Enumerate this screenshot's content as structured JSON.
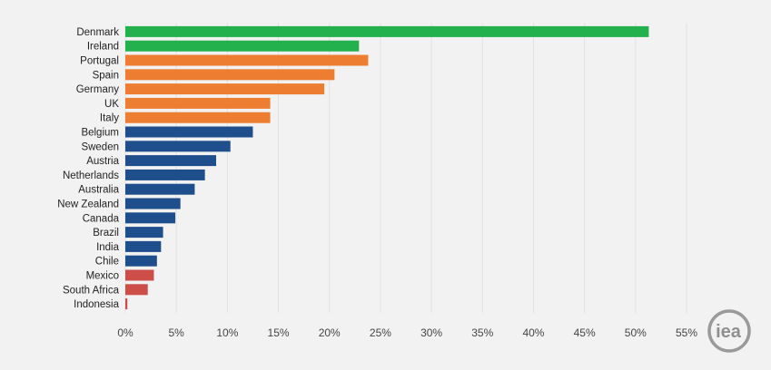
{
  "chart_data": {
    "type": "bar",
    "orientation": "horizontal",
    "categories": [
      "Denmark",
      "Ireland",
      "Portugal",
      "Spain",
      "Germany",
      "UK",
      "Italy",
      "Belgium",
      "Sweden",
      "Austria",
      "Netherlands",
      "Australia",
      "New Zealand",
      "Canada",
      "Brazil",
      "India",
      "Chile",
      "Mexico",
      "South Africa",
      "Indonesia"
    ],
    "values": [
      51.3,
      22.9,
      23.8,
      20.5,
      19.5,
      14.2,
      14.2,
      12.5,
      10.3,
      8.9,
      7.8,
      6.8,
      5.4,
      4.9,
      3.7,
      3.5,
      3.1,
      2.8,
      2.2,
      0.2
    ],
    "groups": [
      "green",
      "green",
      "orange",
      "orange",
      "orange",
      "orange",
      "orange",
      "blue",
      "blue",
      "blue",
      "blue",
      "blue",
      "blue",
      "blue",
      "blue",
      "blue",
      "blue",
      "red",
      "red",
      "red"
    ],
    "colors": {
      "green": "#22b14c",
      "orange": "#ed7d31",
      "blue": "#1f4e8c",
      "red": "#cd4e48"
    },
    "xlim": [
      0,
      55
    ],
    "xticks": [
      0,
      5,
      10,
      15,
      20,
      25,
      30,
      35,
      40,
      45,
      50,
      55
    ],
    "xtick_labels": [
      "0%",
      "5%",
      "10%",
      "15%",
      "20%",
      "25%",
      "30%",
      "35%",
      "40%",
      "45%",
      "50%",
      "55%"
    ],
    "grid": true,
    "title": "",
    "xlabel": "",
    "ylabel": ""
  },
  "logo": {
    "text": "iea"
  }
}
